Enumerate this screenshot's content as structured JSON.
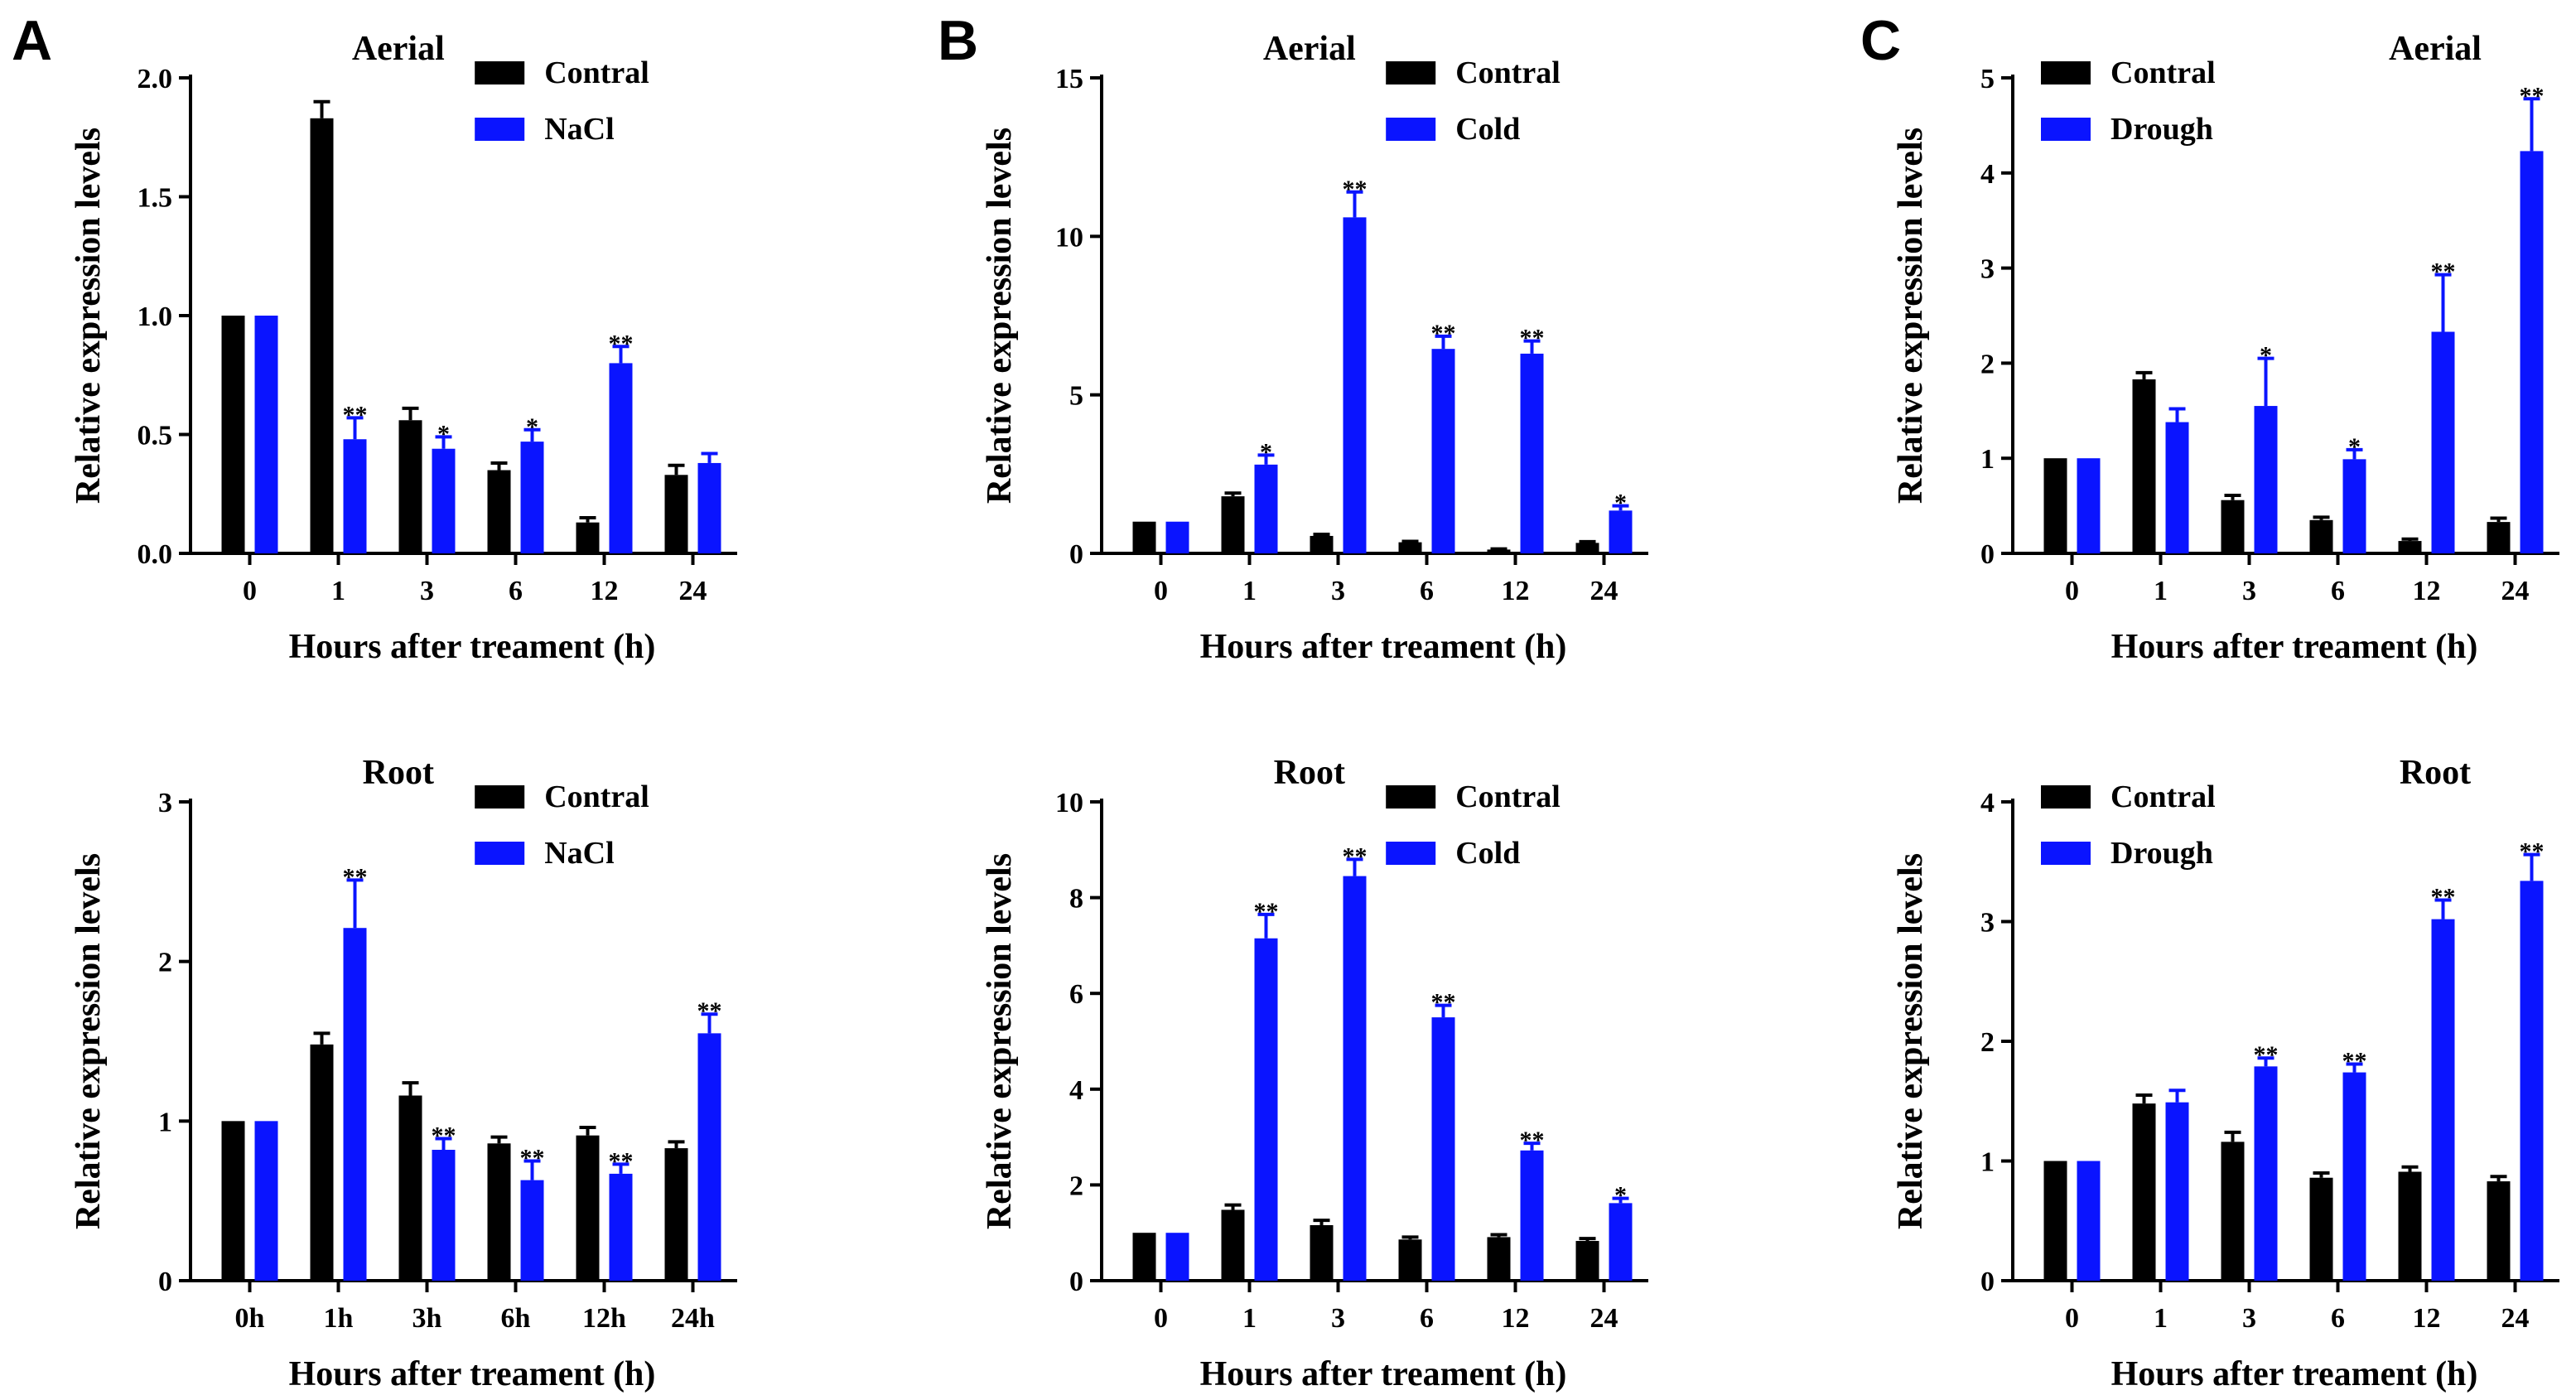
{
  "panel_labels": [
    "A",
    "B",
    "C"
  ],
  "colors": {
    "control": "#000000",
    "treatment": "#0a14ff"
  },
  "chart_data": [
    {
      "id": "A-aerial",
      "type": "bar",
      "panel": "A",
      "title": "Aerial",
      "xlabel": "Hours after treament (h)",
      "ylabel": "Relative expression levels",
      "categories": [
        "0",
        "1",
        "3",
        "6",
        "12",
        "24"
      ],
      "ylim": [
        0,
        2.0
      ],
      "yticks": [
        "0.0",
        "0.5",
        "1.0",
        "1.5",
        "2.0"
      ],
      "legend_position": "top-right",
      "series": [
        {
          "name": "Contral",
          "values": [
            1.0,
            1.83,
            0.56,
            0.35,
            0.13,
            0.33
          ],
          "errors": [
            0,
            0.07,
            0.05,
            0.03,
            0.02,
            0.04
          ],
          "sig": [
            "",
            "",
            "",
            "",
            "",
            ""
          ]
        },
        {
          "name": "NaCl",
          "values": [
            1.0,
            0.48,
            0.44,
            0.47,
            0.8,
            0.38
          ],
          "errors": [
            0,
            0.09,
            0.05,
            0.05,
            0.07,
            0.04
          ],
          "sig": [
            "",
            "**",
            "*",
            "*",
            "**",
            ""
          ]
        }
      ]
    },
    {
      "id": "B-aerial",
      "type": "bar",
      "panel": "B",
      "title": "Aerial",
      "xlabel": "Hours after treament (h)",
      "ylabel": "Relative expression levels",
      "categories": [
        "0",
        "1",
        "3",
        "6",
        "12",
        "24"
      ],
      "ylim": [
        0,
        15
      ],
      "yticks": [
        "0",
        "5",
        "10",
        "15"
      ],
      "legend_position": "top-right",
      "series": [
        {
          "name": "Contral",
          "values": [
            1.0,
            1.8,
            0.55,
            0.35,
            0.12,
            0.33
          ],
          "errors": [
            0,
            0.1,
            0.05,
            0.03,
            0.02,
            0.04
          ],
          "sig": [
            "",
            "",
            "",
            "",
            "",
            ""
          ]
        },
        {
          "name": "Cold",
          "values": [
            1.0,
            2.8,
            10.6,
            6.45,
            6.3,
            1.35
          ],
          "errors": [
            0,
            0.3,
            0.8,
            0.4,
            0.4,
            0.15
          ],
          "sig": [
            "",
            "*",
            "**",
            "**",
            "**",
            "*"
          ]
        }
      ]
    },
    {
      "id": "C-aerial",
      "type": "bar",
      "panel": "C",
      "title": "Aerial",
      "xlabel": "Hours after treament (h)",
      "ylabel": "Relative expression levels",
      "categories": [
        "0",
        "1",
        "3",
        "6",
        "12",
        "24"
      ],
      "ylim": [
        0,
        5
      ],
      "yticks": [
        "0",
        "1",
        "2",
        "3",
        "4",
        "5"
      ],
      "legend_position": "top-left",
      "series": [
        {
          "name": "Contral",
          "values": [
            1.0,
            1.83,
            0.56,
            0.35,
            0.13,
            0.33
          ],
          "errors": [
            0,
            0.07,
            0.05,
            0.03,
            0.02,
            0.04
          ],
          "sig": [
            "",
            "",
            "",
            "",
            "",
            ""
          ]
        },
        {
          "name": "Drough",
          "values": [
            1.0,
            1.38,
            1.55,
            0.99,
            2.33,
            4.23
          ],
          "errors": [
            0,
            0.14,
            0.5,
            0.1,
            0.6,
            0.55
          ],
          "sig": [
            "",
            "",
            "*",
            "*",
            "**",
            "**"
          ]
        }
      ]
    },
    {
      "id": "A-root",
      "type": "bar",
      "panel": "A",
      "title": "Root",
      "xlabel": "Hours after treament (h)",
      "ylabel": "Relative expression levels",
      "categories": [
        "0h",
        "1h",
        "3h",
        "6h",
        "12h",
        "24h"
      ],
      "ylim": [
        0,
        3
      ],
      "yticks": [
        "0",
        "1",
        "2",
        "3"
      ],
      "legend_position": "top-right",
      "series": [
        {
          "name": "Contral",
          "values": [
            1.0,
            1.48,
            1.16,
            0.86,
            0.91,
            0.83
          ],
          "errors": [
            0,
            0.07,
            0.08,
            0.04,
            0.05,
            0.04
          ],
          "sig": [
            "",
            "",
            "",
            "",
            "",
            ""
          ]
        },
        {
          "name": "NaCl",
          "values": [
            1.0,
            2.21,
            0.82,
            0.63,
            0.67,
            1.55
          ],
          "errors": [
            0,
            0.3,
            0.07,
            0.12,
            0.06,
            0.12
          ],
          "sig": [
            "",
            "**",
            "**",
            "**",
            "**",
            "**"
          ]
        }
      ]
    },
    {
      "id": "B-root",
      "type": "bar",
      "panel": "B",
      "title": "Root",
      "xlabel": "Hours after treament (h)",
      "ylabel": "Relative expression levels",
      "categories": [
        "0",
        "1",
        "3",
        "6",
        "12",
        "24"
      ],
      "ylim": [
        0,
        10
      ],
      "yticks": [
        "0",
        "2",
        "4",
        "6",
        "8",
        "10"
      ],
      "legend_position": "top-right",
      "series": [
        {
          "name": "Contral",
          "values": [
            1.0,
            1.48,
            1.16,
            0.86,
            0.91,
            0.83
          ],
          "errors": [
            0,
            0.1,
            0.1,
            0.05,
            0.05,
            0.05
          ],
          "sig": [
            "",
            "",
            "",
            "",
            "",
            ""
          ]
        },
        {
          "name": "Cold",
          "values": [
            1.0,
            7.15,
            8.45,
            5.5,
            2.72,
            1.62
          ],
          "errors": [
            0,
            0.5,
            0.35,
            0.25,
            0.15,
            0.1
          ],
          "sig": [
            "",
            "**",
            "**",
            "**",
            "**",
            "*"
          ]
        }
      ]
    },
    {
      "id": "C-root",
      "type": "bar",
      "panel": "C",
      "title": "Root",
      "xlabel": "Hours after treament (h)",
      "ylabel": "Relative expression levels",
      "categories": [
        "0",
        "1",
        "3",
        "6",
        "12",
        "24"
      ],
      "ylim": [
        0,
        4
      ],
      "yticks": [
        "0",
        "1",
        "2",
        "3",
        "4"
      ],
      "legend_position": "top-left",
      "series": [
        {
          "name": "Contral",
          "values": [
            1.0,
            1.48,
            1.16,
            0.86,
            0.91,
            0.83
          ],
          "errors": [
            0,
            0.07,
            0.08,
            0.04,
            0.04,
            0.04
          ],
          "sig": [
            "",
            "",
            "",
            "",
            "",
            ""
          ]
        },
        {
          "name": "Drough",
          "values": [
            1.0,
            1.49,
            1.79,
            1.74,
            3.02,
            3.34
          ],
          "errors": [
            0,
            0.1,
            0.07,
            0.07,
            0.16,
            0.22
          ],
          "sig": [
            "",
            "",
            "**",
            "**",
            "**",
            "**"
          ]
        }
      ]
    }
  ]
}
